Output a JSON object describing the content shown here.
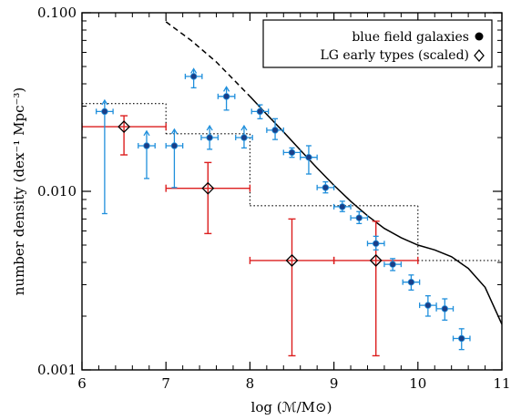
{
  "chart_data": {
    "type": "scatter",
    "title": "",
    "xlabel": "log (ℳ/M⊙)",
    "ylabel": "number density (dex⁻¹ Mpc⁻³)",
    "xlim": [
      6,
      11
    ],
    "ylim": [
      0.001,
      0.1
    ],
    "y_scale": "log",
    "x_ticks": [
      {
        "value": 6,
        "label": "6"
      },
      {
        "value": 7,
        "label": "7"
      },
      {
        "value": 8,
        "label": "8"
      },
      {
        "value": 9,
        "label": "9"
      },
      {
        "value": 10,
        "label": "10"
      },
      {
        "value": 11,
        "label": "11"
      }
    ],
    "y_ticks": [
      {
        "value": 0.001,
        "label": "0.001"
      },
      {
        "value": 0.01,
        "label": "0.010"
      },
      {
        "value": 0.1,
        "label": "0.100"
      }
    ],
    "legend_position": "top-right",
    "legend": [
      {
        "label": "blue field galaxies",
        "marker": "filled-circle"
      },
      {
        "label": "LG early types (scaled)",
        "marker": "open-diamond"
      }
    ],
    "colors": {
      "blue_series": "#1f8fdc",
      "blue_marker_fill": "#1a3f88",
      "red_series": "#dc1e1e",
      "curve": "#000000"
    },
    "series": [
      {
        "name": "blue field galaxies",
        "points": [
          {
            "x": 6.27,
            "y": 0.028,
            "xerr": 0.1,
            "ylo": 0.0075,
            "yhi": 0.032,
            "lower_limit": true
          },
          {
            "x": 6.77,
            "y": 0.018,
            "xerr": 0.1,
            "ylo": 0.0118,
            "yhi": 0.0215,
            "lower_limit": true
          },
          {
            "x": 7.1,
            "y": 0.018,
            "xerr": 0.1,
            "ylo": 0.0105,
            "yhi": 0.022,
            "lower_limit": true
          },
          {
            "x": 7.33,
            "y": 0.044,
            "xerr": 0.1,
            "ylo": 0.038,
            "yhi": 0.048,
            "lower_limit": true
          },
          {
            "x": 7.52,
            "y": 0.02,
            "xerr": 0.1,
            "ylo": 0.0172,
            "yhi": 0.023,
            "lower_limit": true
          },
          {
            "x": 7.72,
            "y": 0.034,
            "xerr": 0.1,
            "ylo": 0.0285,
            "yhi": 0.038,
            "lower_limit": true
          },
          {
            "x": 7.93,
            "y": 0.02,
            "xerr": 0.1,
            "ylo": 0.0175,
            "yhi": 0.023,
            "lower_limit": true
          },
          {
            "x": 8.12,
            "y": 0.028,
            "xerr": 0.1,
            "ylo": 0.0255,
            "yhi": 0.0305
          },
          {
            "x": 8.3,
            "y": 0.022,
            "xerr": 0.1,
            "ylo": 0.0195,
            "yhi": 0.0255
          },
          {
            "x": 8.5,
            "y": 0.0165,
            "xerr": 0.1,
            "ylo": 0.0155,
            "yhi": 0.0175
          },
          {
            "x": 8.7,
            "y": 0.0155,
            "xerr": 0.1,
            "ylo": 0.0125,
            "yhi": 0.018
          },
          {
            "x": 8.9,
            "y": 0.0105,
            "xerr": 0.1,
            "ylo": 0.0098,
            "yhi": 0.0113
          },
          {
            "x": 9.1,
            "y": 0.0082,
            "xerr": 0.1,
            "ylo": 0.0077,
            "yhi": 0.0088
          },
          {
            "x": 9.3,
            "y": 0.0071,
            "xerr": 0.1,
            "ylo": 0.0066,
            "yhi": 0.0077
          },
          {
            "x": 9.5,
            "y": 0.0051,
            "xerr": 0.1,
            "ylo": 0.0047,
            "yhi": 0.0056
          },
          {
            "x": 9.7,
            "y": 0.0039,
            "xerr": 0.1,
            "ylo": 0.0036,
            "yhi": 0.0042
          },
          {
            "x": 9.92,
            "y": 0.0031,
            "xerr": 0.1,
            "ylo": 0.0028,
            "yhi": 0.0034
          },
          {
            "x": 10.12,
            "y": 0.0023,
            "xerr": 0.1,
            "ylo": 0.002,
            "yhi": 0.0026
          },
          {
            "x": 10.32,
            "y": 0.0022,
            "xerr": 0.1,
            "ylo": 0.0019,
            "yhi": 0.0025
          },
          {
            "x": 10.52,
            "y": 0.0015,
            "xerr": 0.1,
            "ylo": 0.0013,
            "yhi": 0.0017
          }
        ]
      },
      {
        "name": "LG early types (scaled)",
        "points": [
          {
            "x": 6.5,
            "y": 0.023,
            "xlo": 6.0,
            "xhi": 7.0,
            "ylo": 0.016,
            "yhi": 0.0265
          },
          {
            "x": 7.5,
            "y": 0.0104,
            "xlo": 7.0,
            "xhi": 8.0,
            "ylo": 0.0058,
            "yhi": 0.0145
          },
          {
            "x": 8.5,
            "y": 0.0041,
            "xlo": 8.0,
            "xhi": 9.0,
            "ylo": 0.0012,
            "yhi": 0.007
          },
          {
            "x": 9.5,
            "y": 0.0041,
            "xlo": 9.0,
            "xhi": 10.0,
            "ylo": 0.0012,
            "yhi": 0.0068
          }
        ]
      },
      {
        "name": "",
        "style": "dotted-step",
        "segments": [
          {
            "x0": 6.0,
            "x1": 7.0,
            "y": 0.031
          },
          {
            "x0": 7.0,
            "x1": 8.0,
            "y": 0.021
          },
          {
            "x0": 8.0,
            "x1": 10.0,
            "y": 0.0083
          },
          {
            "x0": 10.0,
            "x1": 11.0,
            "y": 0.0041
          }
        ]
      },
      {
        "name": "",
        "style": "curve",
        "dashed_until_x": 8.0,
        "points": [
          [
            7.0,
            0.089
          ],
          [
            7.3,
            0.07
          ],
          [
            7.6,
            0.053
          ],
          [
            8.0,
            0.034
          ],
          [
            8.2,
            0.027
          ],
          [
            8.4,
            0.0215
          ],
          [
            8.6,
            0.017
          ],
          [
            8.8,
            0.0135
          ],
          [
            9.0,
            0.0108
          ],
          [
            9.2,
            0.0088
          ],
          [
            9.4,
            0.0073
          ],
          [
            9.6,
            0.0062
          ],
          [
            9.8,
            0.0055
          ],
          [
            10.0,
            0.005
          ],
          [
            10.2,
            0.0047
          ],
          [
            10.4,
            0.0043
          ],
          [
            10.6,
            0.0037
          ],
          [
            10.8,
            0.0029
          ],
          [
            11.0,
            0.0018
          ]
        ]
      }
    ]
  }
}
